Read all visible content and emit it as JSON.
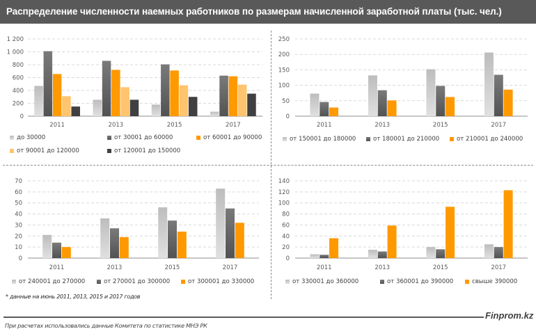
{
  "header": {
    "title": "Распределение численности  наемных работников  по размерам начисленной заработной платы (тыс. чел.)"
  },
  "palette": {
    "header_bg": "#595959",
    "light_gray": "#c8c8c8",
    "dark_gray": "#6e6e6e",
    "orange": "#ff9900",
    "light_orange": "#ffc46e",
    "charcoal": "#404040"
  },
  "chart_data": [
    {
      "type": "bar",
      "title": "",
      "xlabel": "",
      "ylabel": "",
      "categories": [
        "2011",
        "2013",
        "2015",
        "2017"
      ],
      "yticks": [
        "0",
        "200",
        "400",
        "600",
        "800",
        "1 000",
        "1 200"
      ],
      "ylim": [
        0,
        1200
      ],
      "grid": true,
      "legend_position": "bottom",
      "series": [
        {
          "name": "до 30000",
          "color": "#c8c8c8",
          "values": [
            470,
            255,
            180,
            70
          ]
        },
        {
          "name": "от 30001 до 60000",
          "color": "#6e6e6e",
          "values": [
            1010,
            860,
            805,
            630
          ]
        },
        {
          "name": "от 60001 до 90000",
          "color": "#ff9900",
          "values": [
            655,
            720,
            710,
            620
          ]
        },
        {
          "name": "от 90001 до 120000",
          "color": "#ffc46e",
          "values": [
            310,
            450,
            480,
            490
          ]
        },
        {
          "name": "от 120001 до 150000",
          "color": "#404040",
          "values": [
            150,
            255,
            300,
            350
          ]
        }
      ]
    },
    {
      "type": "bar",
      "title": "",
      "xlabel": "",
      "ylabel": "",
      "categories": [
        "2011",
        "2013",
        "2015",
        "2017"
      ],
      "yticks": [
        "0",
        "50",
        "100",
        "150",
        "200",
        "250"
      ],
      "ylim": [
        0,
        250
      ],
      "grid": true,
      "legend_position": "bottom",
      "series": [
        {
          "name": "от 150001 до 180000",
          "color": "#c8c8c8",
          "values": [
            73,
            132,
            152,
            206
          ]
        },
        {
          "name": "от 180001 до 210000",
          "color": "#6e6e6e",
          "values": [
            46,
            84,
            98,
            134
          ]
        },
        {
          "name": "от 210001 до 240000",
          "color": "#ff9900",
          "values": [
            28,
            51,
            62,
            86
          ]
        }
      ]
    },
    {
      "type": "bar",
      "title": "",
      "xlabel": "",
      "ylabel": "",
      "categories": [
        "2011",
        "2013",
        "2015",
        "2017"
      ],
      "yticks": [
        "0",
        "10",
        "20",
        "30",
        "40",
        "50",
        "60",
        "70"
      ],
      "ylim": [
        0,
        70
      ],
      "grid": true,
      "legend_position": "bottom",
      "series": [
        {
          "name": "от 240001 до 270000",
          "color": "#c8c8c8",
          "values": [
            21,
            36,
            46,
            63
          ]
        },
        {
          "name": "от 270001 до 300000",
          "color": "#6e6e6e",
          "values": [
            14,
            27,
            34,
            45
          ]
        },
        {
          "name": "от 300001 до 330000",
          "color": "#ff9900",
          "values": [
            10,
            19,
            24,
            32
          ]
        }
      ]
    },
    {
      "type": "bar",
      "title": "",
      "xlabel": "",
      "ylabel": "",
      "categories": [
        "2011",
        "2013",
        "2015",
        "2017"
      ],
      "yticks": [
        "0",
        "20",
        "40",
        "60",
        "80",
        "100",
        "120",
        "140"
      ],
      "ylim": [
        0,
        140
      ],
      "grid": true,
      "legend_position": "bottom",
      "series": [
        {
          "name": "от 330001 до 360000",
          "color": "#c8c8c8",
          "values": [
            7,
            15,
            20,
            25
          ]
        },
        {
          "name": "от 360001 до 390000",
          "color": "#6e6e6e",
          "values": [
            6,
            12,
            16,
            20
          ]
        },
        {
          "name": "свыше 390000",
          "color": "#ff9900",
          "values": [
            36,
            59,
            93,
            123
          ]
        }
      ]
    }
  ],
  "footnote": "* данные на июнь 2011, 2013, 2015 и 2017 годов",
  "brand": "Finprom.kz",
  "source": "При расчетах использовались данные  Комитета по статистике МНЭ РК"
}
